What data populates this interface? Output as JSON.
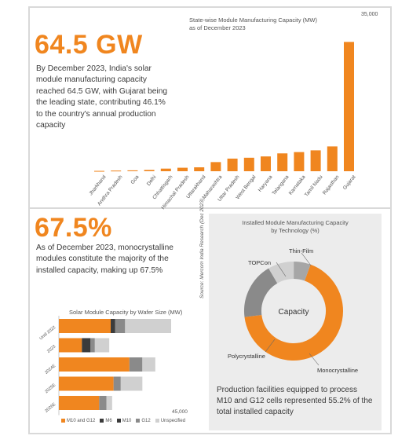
{
  "top": {
    "headline": "64.5 GW",
    "paragraph": "By December 2023, India's solar module manufacturing capacity reached 64.5 GW, with Gujarat being the leading state, contributing 46.1% to the country's annual production capacity",
    "chart_title_line1": "State-wise Module Manufacturing Capacity (MW)",
    "chart_title_line2": "as of December 2023",
    "max_label": "35,000"
  },
  "middle": {
    "headline": "67.5%",
    "paragraph": "As of December 2023, monocrystalline modules constitute the majority of the installed capacity, making up 67.5%",
    "source": "Source: Mercom India Research (Dec 2023)"
  },
  "tech": {
    "title_line1": "Installed Module Manufacturing Capacity",
    "title_line2": "by Technology (%)",
    "center_label": "Capacity",
    "labels": {
      "thin_film": "Thin-Film",
      "topcon": "TOPCon",
      "poly": "Polycrystalline",
      "mono": "Monocrystalline"
    },
    "footnote": "Production facilities equipped to process M10 and G12 cells represented 55.2% of the total installed capacity"
  },
  "wafer": {
    "title": "Solar Module Capacity by Wafer Size (MW)",
    "axis_max_label": "45,000",
    "legend": [
      "M10 and G12",
      "M6",
      "M10",
      "G12",
      "Unspecified"
    ]
  },
  "colors": {
    "orange": "#f0861f",
    "dark": "#3b3b3b",
    "mid_gray": "#8a8a8a",
    "light_gray": "#d0d0d0",
    "gray2": "#a6a6a6"
  },
  "chart_data": [
    {
      "type": "bar",
      "title": "State-wise Module Manufacturing Capacity (MW)",
      "subtitle": "as of December 2023",
      "categories": [
        "Jharkhand",
        "Andhra Pradesh",
        "Goa",
        "Delhi",
        "Chhattisgarh",
        "Himachal Pradesh",
        "Uttarakhand",
        "Maharashtra",
        "Uttar Pradesh",
        "West Bengal",
        "Haryana",
        "Telangana",
        "Karnataka",
        "Tamil Nadu",
        "Rajasthan",
        "Gujarat"
      ],
      "values": [
        80,
        150,
        200,
        300,
        600,
        800,
        900,
        2100,
        2900,
        3100,
        3400,
        4100,
        4400,
        4800,
        5700,
        29700
      ],
      "ylim": [
        0,
        35000
      ],
      "max_tick_label": "35,000"
    },
    {
      "type": "pie",
      "title": "Installed Module Manufacturing Capacity by Technology (%)",
      "categories": [
        "Monocrystalline",
        "Polycrystalline",
        "TOPCon",
        "Thin-Film"
      ],
      "values": [
        67.5,
        18.5,
        8.5,
        5.5
      ],
      "colors": [
        "#f0861f",
        "#8a8a8a",
        "#d0d0d0",
        "#a6a6a6"
      ]
    },
    {
      "type": "bar",
      "orientation": "horizontal-stacked",
      "title": "Solar Module Capacity by Wafer Size (MW)",
      "categories": [
        "Until 2022",
        "2023",
        "2024E",
        "2025E",
        "2026E"
      ],
      "series": [
        {
          "name": "M10 and G12",
          "values": [
            18000,
            8000,
            24500,
            19000,
            14000
          ]
        },
        {
          "name": "M6",
          "values": [
            1500,
            3000,
            0,
            0,
            0
          ]
        },
        {
          "name": "M10",
          "values": [
            0,
            0,
            0,
            0,
            0
          ]
        },
        {
          "name": "G12",
          "values": [
            3500,
            1500,
            4500,
            2500,
            2500
          ]
        },
        {
          "name": "Unspecified",
          "values": [
            16000,
            5000,
            4500,
            7500,
            2000
          ]
        }
      ],
      "xlim": [
        0,
        45000
      ],
      "axis_max_label": "45,000"
    }
  ]
}
